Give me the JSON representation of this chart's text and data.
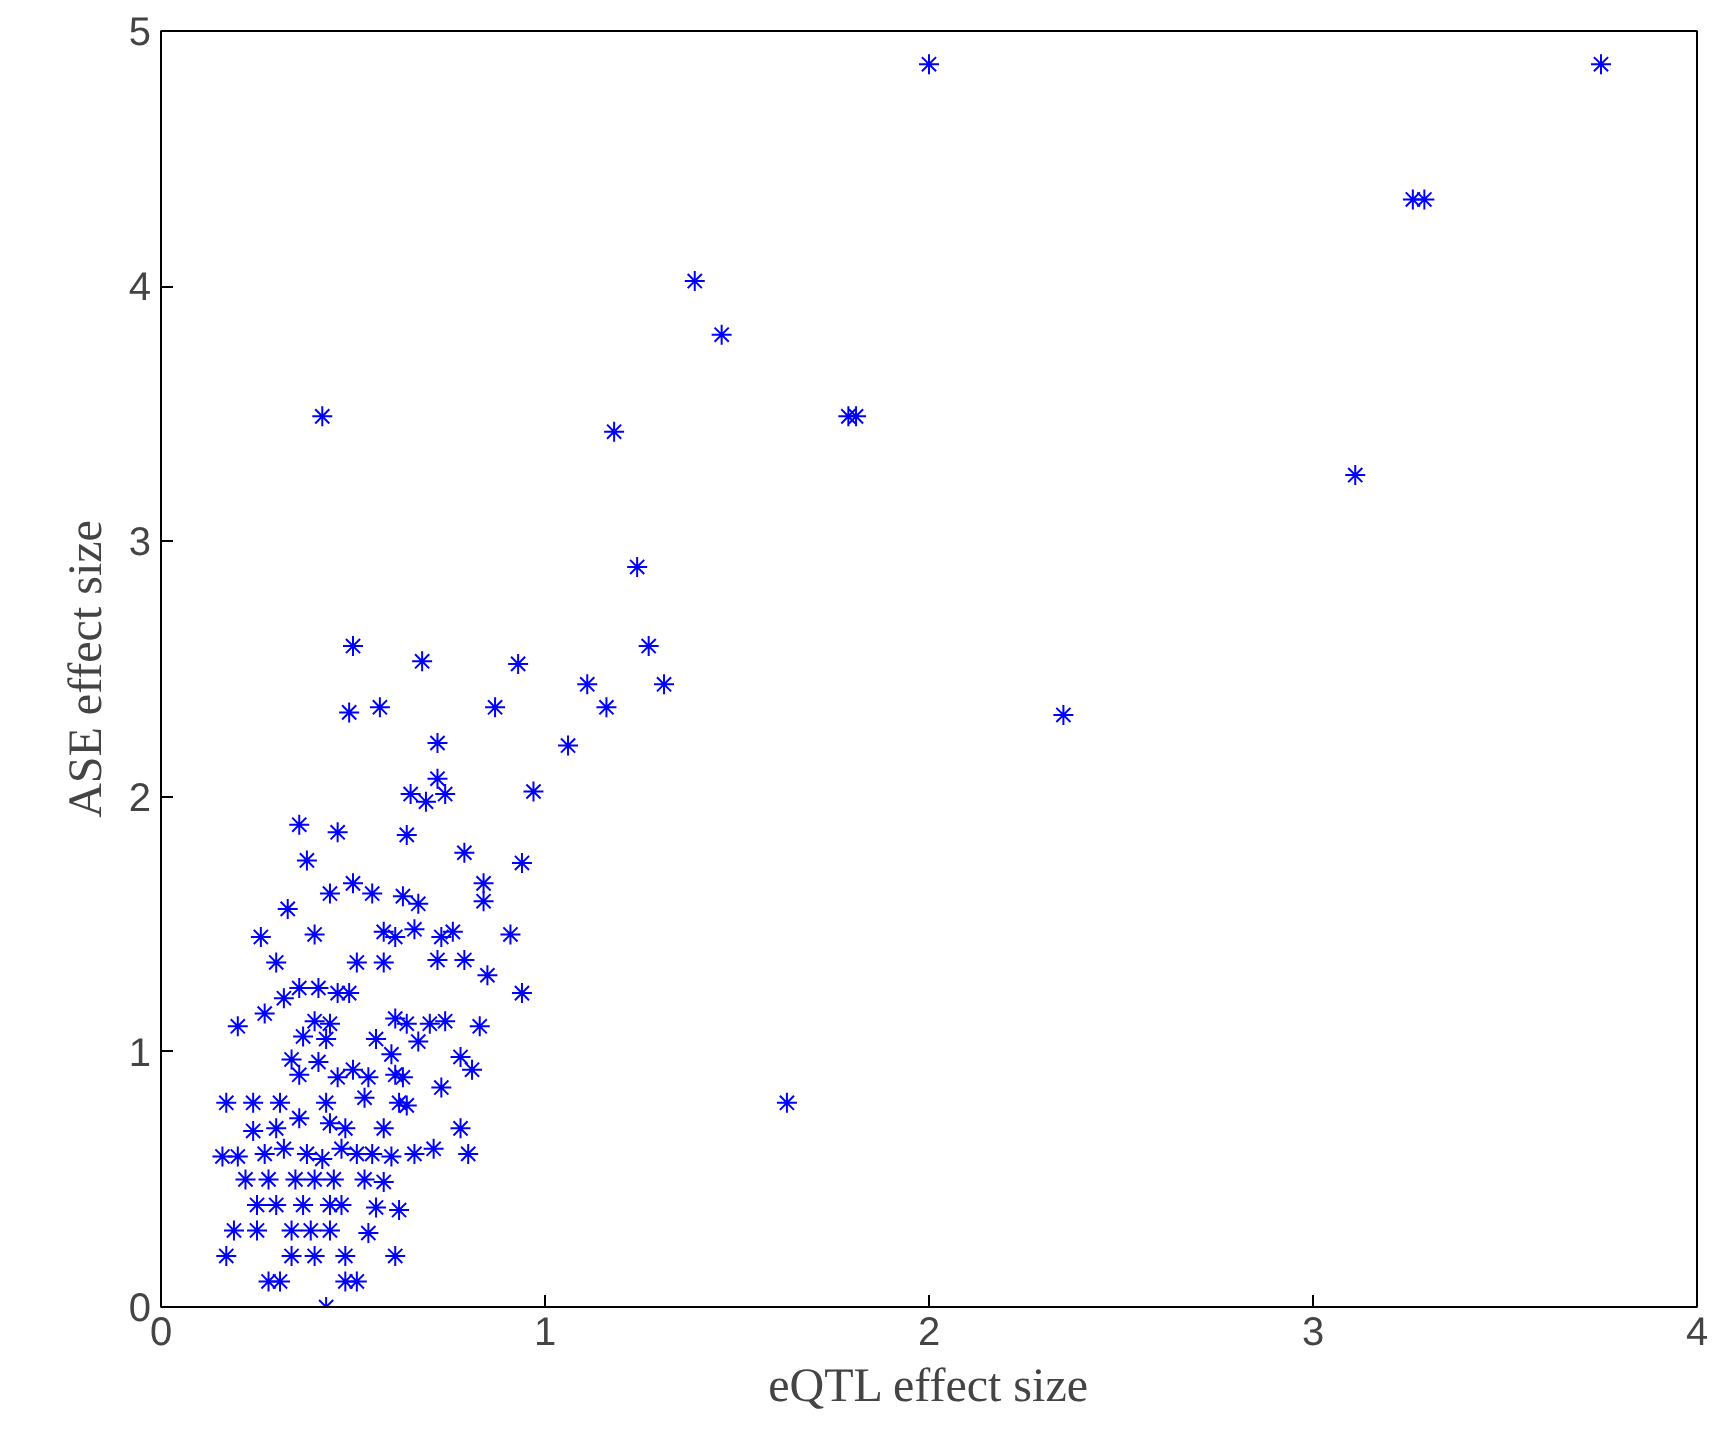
{
  "chart_data": {
    "type": "scatter",
    "xlabel": "eQTL effect size",
    "ylabel": "ASE effect size",
    "xlim": [
      0,
      4
    ],
    "ylim": [
      0,
      5
    ],
    "xticks": [
      0,
      1,
      2,
      3,
      4
    ],
    "yticks": [
      0,
      1,
      2,
      3,
      4,
      5
    ],
    "grid": false,
    "marker": "cross",
    "series": [
      {
        "color": "#0000ff",
        "x": [
          2.0,
          3.75,
          3.26,
          3.29,
          1.39,
          1.46,
          0.42,
          1.79,
          1.81,
          1.18,
          3.11,
          1.24,
          2.35,
          1.63,
          0.5,
          0.68,
          0.93,
          1.27,
          1.11,
          1.31,
          0.49,
          0.57,
          0.87,
          1.16,
          1.06,
          0.72,
          0.72,
          0.65,
          0.74,
          0.97,
          0.69,
          0.36,
          0.46,
          0.64,
          0.38,
          0.79,
          0.94,
          0.5,
          0.55,
          0.44,
          0.63,
          0.84,
          0.84,
          0.67,
          0.33,
          0.58,
          0.61,
          0.73,
          0.76,
          0.91,
          0.66,
          0.4,
          0.26,
          0.3,
          0.51,
          0.58,
          0.72,
          0.79,
          0.85,
          0.36,
          0.41,
          0.46,
          0.49,
          0.94,
          0.32,
          0.27,
          0.4,
          0.44,
          0.61,
          0.64,
          0.7,
          0.74,
          0.83,
          0.2,
          0.37,
          0.43,
          0.56,
          0.67,
          0.6,
          0.34,
          0.41,
          0.5,
          0.61,
          0.78,
          0.36,
          0.46,
          0.54,
          0.63,
          0.73,
          0.81,
          0.24,
          0.31,
          0.43,
          0.53,
          0.62,
          0.17,
          0.64,
          0.36,
          0.44,
          0.3,
          0.48,
          0.58,
          0.24,
          0.78,
          0.32,
          0.27,
          0.38,
          0.47,
          0.55,
          0.66,
          0.71,
          0.8,
          0.16,
          0.2,
          0.42,
          0.51,
          0.6,
          0.22,
          0.28,
          0.35,
          0.4,
          0.45,
          0.53,
          0.58,
          0.25,
          0.3,
          0.37,
          0.44,
          0.47,
          0.56,
          0.62,
          0.19,
          0.25,
          0.34,
          0.39,
          0.44,
          0.54,
          0.17,
          0.34,
          0.4,
          0.48,
          0.61,
          0.28,
          0.31,
          0.48,
          0.51,
          0.43
        ],
        "values": [
          4.87,
          4.87,
          4.34,
          4.34,
          4.02,
          3.81,
          3.49,
          3.49,
          3.49,
          3.43,
          3.26,
          2.9,
          2.32,
          0.8,
          2.59,
          2.53,
          2.52,
          2.59,
          2.44,
          2.44,
          2.33,
          2.35,
          2.35,
          2.35,
          2.2,
          2.21,
          2.07,
          2.01,
          2.01,
          2.02,
          1.98,
          1.89,
          1.86,
          1.85,
          1.75,
          1.78,
          1.74,
          1.66,
          1.62,
          1.62,
          1.61,
          1.66,
          1.59,
          1.58,
          1.56,
          1.47,
          1.45,
          1.45,
          1.47,
          1.46,
          1.48,
          1.46,
          1.45,
          1.35,
          1.35,
          1.35,
          1.36,
          1.36,
          1.3,
          1.25,
          1.25,
          1.23,
          1.23,
          1.23,
          1.21,
          1.15,
          1.12,
          1.11,
          1.13,
          1.11,
          1.11,
          1.12,
          1.1,
          1.1,
          1.06,
          1.05,
          1.05,
          1.04,
          0.99,
          0.97,
          0.96,
          0.93,
          0.91,
          0.98,
          0.91,
          0.9,
          0.9,
          0.9,
          0.86,
          0.93,
          0.8,
          0.8,
          0.8,
          0.82,
          0.8,
          0.8,
          0.79,
          0.74,
          0.72,
          0.7,
          0.7,
          0.7,
          0.69,
          0.7,
          0.62,
          0.6,
          0.6,
          0.62,
          0.6,
          0.6,
          0.62,
          0.6,
          0.59,
          0.59,
          0.58,
          0.6,
          0.59,
          0.5,
          0.5,
          0.5,
          0.5,
          0.5,
          0.5,
          0.49,
          0.4,
          0.4,
          0.4,
          0.4,
          0.4,
          0.39,
          0.38,
          0.3,
          0.3,
          0.3,
          0.3,
          0.3,
          0.29,
          0.2,
          0.2,
          0.2,
          0.2,
          0.2,
          0.1,
          0.1,
          0.1,
          0.1,
          0.0
        ]
      }
    ]
  }
}
